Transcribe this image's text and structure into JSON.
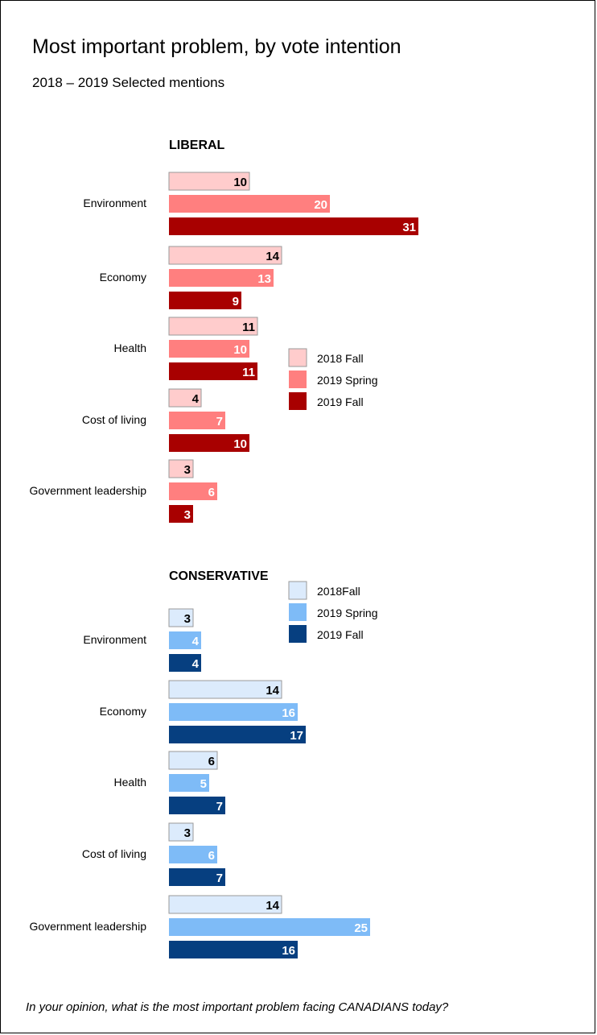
{
  "title": "Most important problem, by vote intention",
  "subtitle": "2018 – 2019 Selected mentions",
  "footnote": "In your opinion, what is the most important problem facing CANADIANS today?",
  "chart_data": [
    {
      "type": "bar",
      "orientation": "horizontal",
      "title": "LIBERAL",
      "categories": [
        "Environment",
        "Economy",
        "Health",
        "Cost of living",
        "Government leadership"
      ],
      "series": [
        {
          "name": "2018 Fall",
          "color": "#FFCCCC",
          "label_color": "#000000",
          "values": [
            10,
            14,
            11,
            4,
            3
          ]
        },
        {
          "name": "2019 Spring",
          "color": "#FF7F7F",
          "label_color": "#FFFFFF",
          "values": [
            20,
            13,
            10,
            7,
            6
          ]
        },
        {
          "name": "2019 Fall",
          "color": "#A80000",
          "label_color": "#FFFFFF",
          "values": [
            31,
            9,
            11,
            10,
            3
          ]
        }
      ],
      "legend_position": "right",
      "grid": false
    },
    {
      "type": "bar",
      "orientation": "horizontal",
      "title": "CONSERVATIVE",
      "categories": [
        "Environment",
        "Economy",
        "Health",
        "Cost of living",
        "Government leadership"
      ],
      "series": [
        {
          "name": "2018Fall",
          "color": "#DCEBFC",
          "label_color": "#000000",
          "values": [
            3,
            14,
            6,
            3,
            14
          ]
        },
        {
          "name": "2019 Spring",
          "color": "#7EBBF7",
          "label_color": "#FFFFFF",
          "values": [
            4,
            16,
            5,
            6,
            25
          ]
        },
        {
          "name": "2019 Fall",
          "color": "#063F80",
          "label_color": "#FFFFFF",
          "values": [
            4,
            17,
            7,
            7,
            16
          ]
        }
      ],
      "legend_position": "right",
      "grid": false
    }
  ]
}
